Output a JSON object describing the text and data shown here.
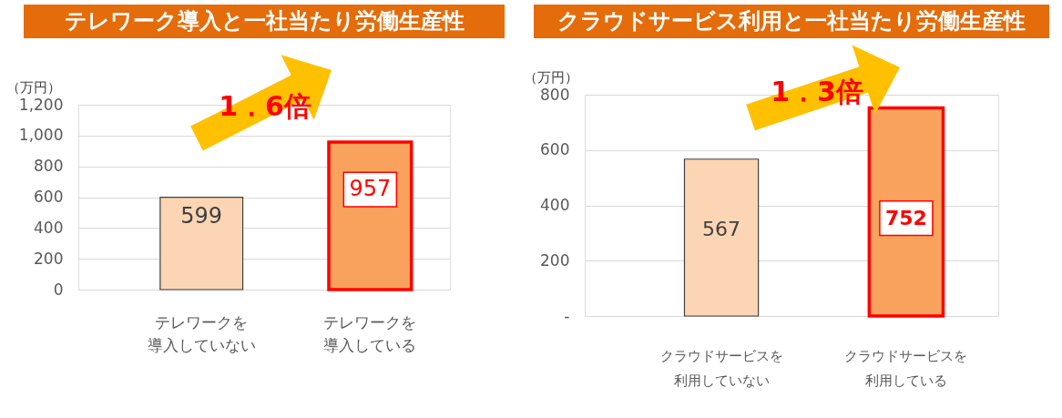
{
  "chart_data": [
    {
      "type": "bar",
      "title": "テレワーク導入と一社当たり労働生産性",
      "ylabel": "（万円）",
      "categories": [
        "テレワークを導入していない",
        "テレワークを導入している"
      ],
      "values": [
        599,
        957
      ],
      "colors": [
        "#fcd5b5",
        "#f8a25e"
      ],
      "ylim": [
        0,
        1200
      ],
      "yticks": [
        0,
        200,
        400,
        600,
        800,
        {
          "value": 1000,
          "label": "1,000"
        },
        {
          "value": 1200,
          "label": "1,200"
        }
      ],
      "grid": "y",
      "data_labels": true,
      "annotations": [
        "1．6倍"
      ]
    },
    {
      "type": "bar",
      "title": "クラウドサービス利用と一社当たり労働生産性",
      "ylabel": "（万円）",
      "categories": [
        "クラウドサービスを利用していない",
        "クラウドサービスを利用している"
      ],
      "values": [
        567,
        752
      ],
      "colors": [
        "#fcd5b5",
        "#f8a25e"
      ],
      "ylim": [
        0,
        800
      ],
      "yticks": [
        {
          "value": 0,
          "label": "-"
        },
        200,
        400,
        600,
        800
      ],
      "grid": "y",
      "data_labels": true,
      "annotations": [
        "1．3倍"
      ]
    }
  ]
}
